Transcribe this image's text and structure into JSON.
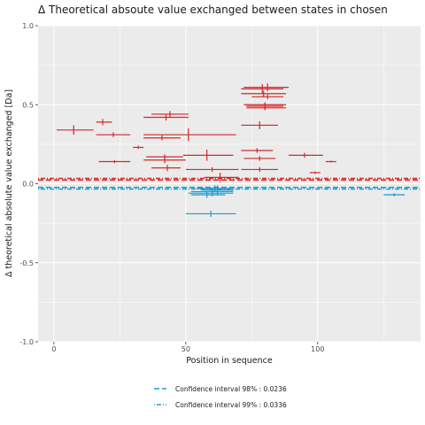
{
  "chart_data": {
    "type": "scatter",
    "title": "Δ Theoretical absoute value exchanged between states in chosen",
    "xlabel": "Position in sequence",
    "ylabel": "Δ theoretical absolute value exchanged [Da]",
    "xlim": [
      -6,
      139
    ],
    "ylim": [
      -1.0,
      1.0
    ],
    "x_ticks": [
      0,
      50,
      100
    ],
    "y_ticks": [
      -1.0,
      -0.5,
      0.0,
      0.5,
      1.0
    ],
    "y_tick_labels": [
      "-1.0",
      "-0.5",
      "0.0",
      "0.5",
      "1.0"
    ],
    "grid": true,
    "legend_position": "bottom",
    "colors": {
      "positive": "#d62728",
      "negative": "#1f9bcf",
      "panel": "#ebebeb",
      "grid": "#ffffff"
    },
    "confidence_intervals": [
      {
        "label": "Confidence interval 98% : 0.0236",
        "value": 0.0236,
        "dash": "dashed"
      },
      {
        "label": "Confidence interval 99% : 0.0336",
        "value": 0.0336,
        "dash": "dotdash"
      }
    ],
    "series": [
      {
        "sign": "positive",
        "points": [
          {
            "x": 7.5,
            "x_start": 1,
            "x_end": 15,
            "y": 0.34,
            "yerr": 0.03
          },
          {
            "x": 18.5,
            "x_start": 16,
            "x_end": 22,
            "y": 0.39,
            "yerr": 0.02
          },
          {
            "x": 22.5,
            "x_start": 16,
            "x_end": 29,
            "y": 0.31,
            "yerr": 0.015
          },
          {
            "x": 23,
            "x_start": 17,
            "x_end": 29,
            "y": 0.14,
            "yerr": 0.01
          },
          {
            "x": 32,
            "x_start": 30,
            "x_end": 34,
            "y": 0.23,
            "yerr": 0.01
          },
          {
            "x": 42.5,
            "x_start": 34,
            "x_end": 51,
            "y": 0.42,
            "yerr": 0.02
          },
          {
            "x": 44,
            "x_start": 37,
            "x_end": 51,
            "y": 0.44,
            "yerr": 0.02
          },
          {
            "x": 41,
            "x_start": 34,
            "x_end": 48,
            "y": 0.29,
            "yerr": 0.015
          },
          {
            "x": 51,
            "x_start": 34,
            "x_end": 69,
            "y": 0.31,
            "yerr": 0.04
          },
          {
            "x": 42,
            "x_start": 35,
            "x_end": 49,
            "y": 0.17,
            "yerr": 0.015
          },
          {
            "x": 42,
            "x_start": 34,
            "x_end": 50,
            "y": 0.15,
            "yerr": 0.02
          },
          {
            "x": 43,
            "x_start": 37,
            "x_end": 48,
            "y": 0.1,
            "yerr": 0.02
          },
          {
            "x": 58,
            "x_start": 49,
            "x_end": 68,
            "y": 0.18,
            "yerr": 0.035
          },
          {
            "x": 60,
            "x_start": 50,
            "x_end": 70,
            "y": 0.09,
            "yerr": 0.015
          },
          {
            "x": 63,
            "x_start": 57,
            "x_end": 70,
            "y": 0.04,
            "yerr": 0.03
          },
          {
            "x": 78,
            "x_start": 71,
            "x_end": 85,
            "y": 0.09,
            "yerr": 0.015
          },
          {
            "x": 77,
            "x_start": 71,
            "x_end": 83,
            "y": 0.21,
            "yerr": 0.015
          },
          {
            "x": 78,
            "x_start": 72,
            "x_end": 84,
            "y": 0.16,
            "yerr": 0.015
          },
          {
            "x": 78,
            "x_start": 71,
            "x_end": 85,
            "y": 0.37,
            "yerr": 0.025
          },
          {
            "x": 79,
            "x_start": 71,
            "x_end": 87,
            "y": 0.6,
            "yerr": 0.03
          },
          {
            "x": 81,
            "x_start": 72,
            "x_end": 89,
            "y": 0.61,
            "yerr": 0.025
          },
          {
            "x": 79.5,
            "x_start": 71,
            "x_end": 88,
            "y": 0.57,
            "yerr": 0.02
          },
          {
            "x": 81,
            "x_start": 75,
            "x_end": 87,
            "y": 0.55,
            "yerr": 0.015
          },
          {
            "x": 80,
            "x_start": 72,
            "x_end": 88,
            "y": 0.5,
            "yerr": 0.015
          },
          {
            "x": 80,
            "x_start": 73,
            "x_end": 87,
            "y": 0.49,
            "yerr": 0.02
          },
          {
            "x": 80,
            "x_start": 73,
            "x_end": 88,
            "y": 0.48,
            "yerr": 0.015
          },
          {
            "x": 95,
            "x_start": 89,
            "x_end": 102,
            "y": 0.18,
            "yerr": 0.015
          },
          {
            "x": 99,
            "x_start": 97,
            "x_end": 101,
            "y": 0.07,
            "yerr": 0.008
          },
          {
            "x": 105,
            "x_start": 103,
            "x_end": 107,
            "y": 0.14,
            "yerr": 0.006
          }
        ]
      },
      {
        "sign": "negative",
        "points": [
          {
            "x": 59.5,
            "x_start": 50,
            "x_end": 69,
            "y": -0.19,
            "yerr": 0.02
          },
          {
            "x": 60,
            "x_start": 51,
            "x_end": 68,
            "y": -0.06,
            "yerr": 0.02
          },
          {
            "x": 58,
            "x_start": 52,
            "x_end": 65,
            "y": -0.07,
            "yerr": 0.02
          },
          {
            "x": 60,
            "x_start": 52,
            "x_end": 68,
            "y": -0.05,
            "yerr": 0.025
          },
          {
            "x": 62,
            "x_start": 56,
            "x_end": 68,
            "y": -0.04,
            "yerr": 0.03
          },
          {
            "x": 61,
            "x_start": 54,
            "x_end": 68,
            "y": -0.03,
            "yerr": 0.02
          },
          {
            "x": 129,
            "x_start": 125,
            "x_end": 133,
            "y": -0.07,
            "yerr": 0.01
          }
        ]
      }
    ]
  }
}
